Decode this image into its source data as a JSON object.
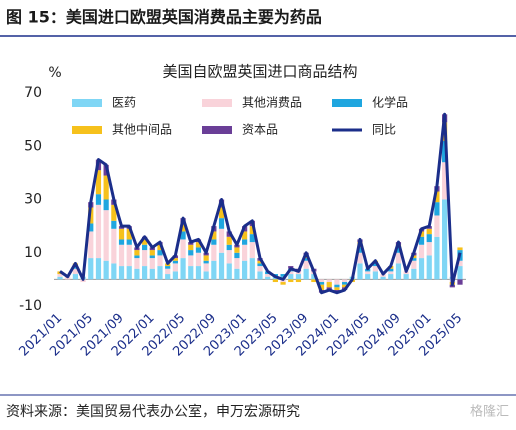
{
  "header": {
    "title": "图 15：美国进口欧盟英国消费品主要为药品"
  },
  "chart_data": {
    "type": "stacked-bar-line",
    "title": "美国自欧盟英国进口商品结构",
    "y_label": "%",
    "categories": [
      "2021/01",
      null,
      null,
      null,
      "2021/05",
      null,
      null,
      null,
      "2021/09",
      null,
      null,
      null,
      "2022/01",
      null,
      null,
      null,
      "2022/05",
      null,
      null,
      null,
      "2022/09",
      null,
      null,
      null,
      "2023/01",
      null,
      null,
      null,
      "2023/05",
      null,
      null,
      null,
      "2023/09",
      null,
      null,
      null,
      "2024/01",
      null,
      null,
      null,
      "2024/05",
      null,
      null,
      null,
      "2024/09",
      null,
      null,
      null,
      "2025/01",
      null,
      null,
      null,
      "2025/05"
    ],
    "ylim": [
      -10,
      70
    ],
    "yticks": [
      -10,
      10,
      30,
      50,
      70
    ],
    "series": [
      {
        "name": "医药",
        "color": "#7fd6f5",
        "kind": "bar",
        "values": [
          1,
          0,
          2,
          1,
          8,
          8,
          7,
          6,
          5,
          5,
          4,
          5,
          4,
          5,
          2,
          3,
          8,
          5,
          5,
          3,
          7,
          10,
          6,
          4,
          7,
          8,
          3,
          1,
          1,
          1,
          2,
          2,
          4,
          2,
          0,
          0,
          0,
          0,
          1,
          6,
          2,
          3,
          1,
          2,
          6,
          2,
          4,
          8,
          9,
          16,
          30,
          1,
          5
        ]
      },
      {
        "name": "其他消费品",
        "color": "#f9d3da",
        "kind": "bar",
        "values": [
          1,
          1,
          2,
          -1,
          10,
          20,
          19,
          13,
          8,
          8,
          4,
          6,
          4,
          4,
          2,
          3,
          7,
          4,
          5,
          3,
          6,
          9,
          5,
          4,
          6,
          6,
          2,
          1,
          0,
          -1,
          1,
          1,
          3,
          1,
          -1,
          -1,
          -2,
          -1,
          0,
          4,
          1,
          2,
          1,
          1,
          4,
          1,
          3,
          5,
          5,
          8,
          14,
          -1,
          2
        ]
      },
      {
        "name": "化学品",
        "color": "#1fa6df",
        "kind": "bar",
        "values": [
          0,
          0,
          1,
          0,
          3,
          4,
          4,
          3,
          2,
          2,
          1,
          2,
          1,
          2,
          1,
          1,
          3,
          2,
          2,
          1,
          2,
          4,
          2,
          2,
          2,
          3,
          1,
          1,
          1,
          1,
          1,
          0,
          1,
          0,
          -1,
          0,
          -1,
          -1,
          0,
          2,
          1,
          1,
          0,
          1,
          2,
          0,
          1,
          3,
          3,
          5,
          8,
          0,
          4
        ]
      },
      {
        "name": "其他中间品",
        "color": "#f6c11c",
        "kind": "bar",
        "values": [
          1,
          0,
          1,
          0,
          6,
          9,
          9,
          6,
          4,
          4,
          2,
          2,
          2,
          2,
          1,
          1,
          3,
          2,
          2,
          2,
          3,
          4,
          3,
          2,
          3,
          3,
          1,
          0,
          -1,
          -1,
          -1,
          -1,
          1,
          -1,
          -2,
          -2,
          -1,
          -1,
          -1,
          2,
          0,
          1,
          0,
          1,
          1,
          0,
          1,
          2,
          2,
          4,
          7,
          -1,
          1
        ]
      },
      {
        "name": "资本品",
        "color": "#6a3e97",
        "kind": "bar",
        "values": [
          0,
          0,
          0,
          0,
          2,
          4,
          4,
          2,
          1,
          1,
          1,
          1,
          1,
          1,
          0,
          1,
          2,
          1,
          1,
          1,
          2,
          3,
          2,
          1,
          2,
          2,
          1,
          0,
          0,
          0,
          1,
          1,
          1,
          1,
          -1,
          -1,
          -1,
          -1,
          0,
          1,
          0,
          0,
          0,
          0,
          1,
          0,
          1,
          1,
          1,
          2,
          3,
          -1,
          -2
        ]
      },
      {
        "name": "同比",
        "color": "#1b2e8a",
        "kind": "line",
        "values": [
          3,
          1,
          6,
          0,
          29,
          45,
          43,
          30,
          20,
          20,
          12,
          16,
          12,
          14,
          6,
          9,
          23,
          14,
          15,
          10,
          20,
          30,
          18,
          13,
          20,
          22,
          8,
          3,
          1,
          0,
          4,
          3,
          10,
          3,
          -5,
          -4,
          -5,
          -4,
          0,
          15,
          4,
          7,
          2,
          5,
          14,
          3,
          10,
          19,
          20,
          35,
          62,
          -2,
          10
        ]
      }
    ]
  },
  "footer": {
    "source": "资料来源：美国贸易代表办公室，申万宏源研究",
    "watermark": "格隆汇"
  }
}
